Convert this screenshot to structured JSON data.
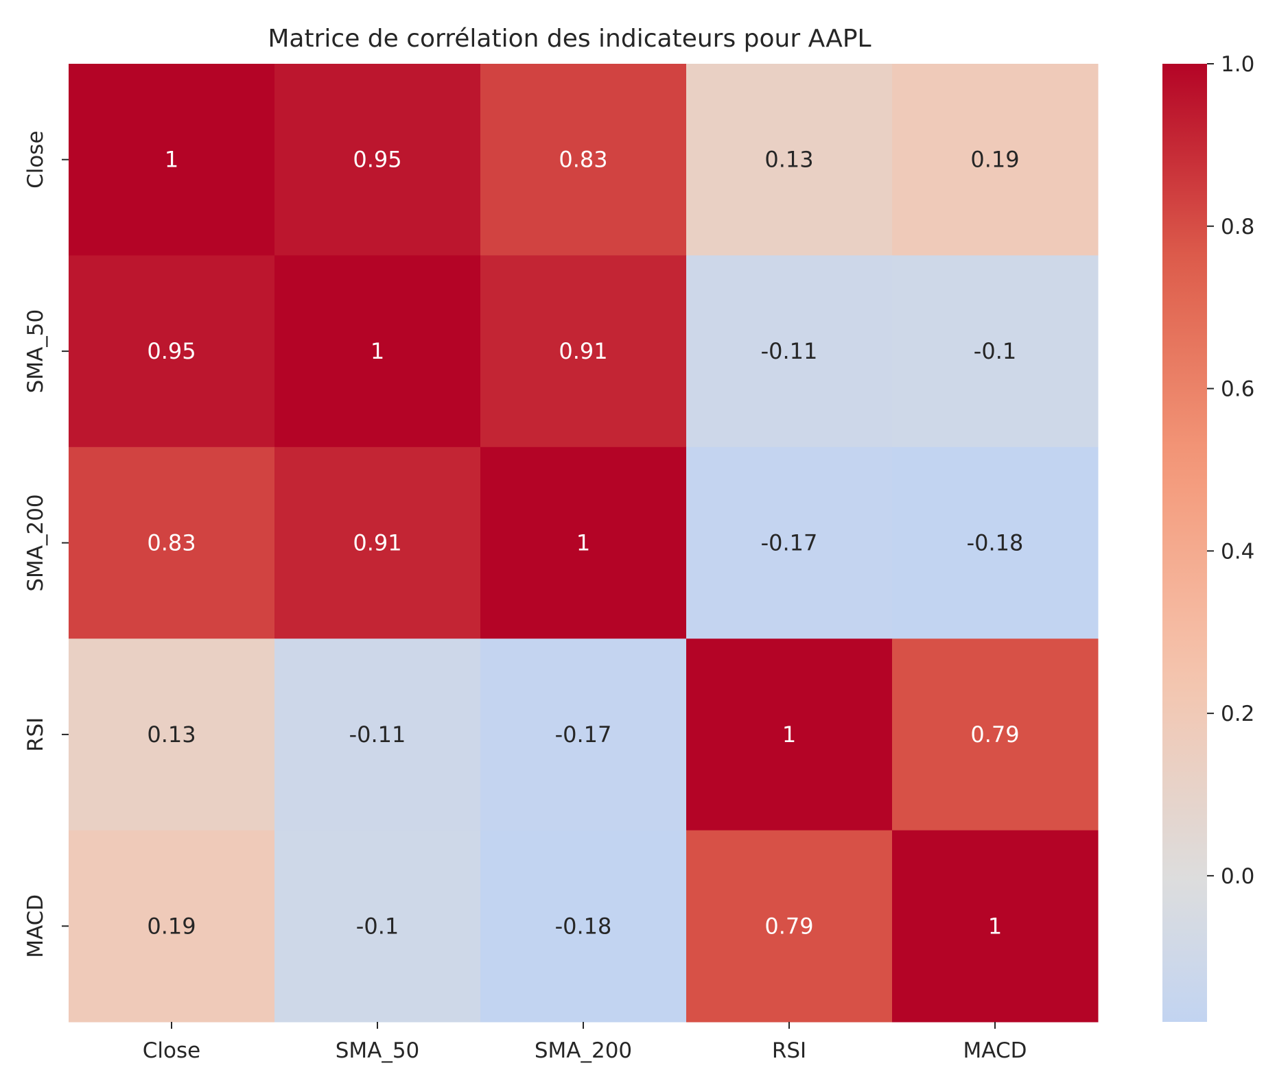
{
  "chart_data": {
    "type": "heatmap",
    "title": "Matrice de corrélation des indicateurs pour AAPL",
    "xlabel": "",
    "ylabel": "",
    "x_categories": [
      "Close",
      "SMA_50",
      "SMA_200",
      "RSI",
      "MACD"
    ],
    "y_categories": [
      "Close",
      "SMA_50",
      "SMA_200",
      "RSI",
      "MACD"
    ],
    "values": [
      [
        1,
        0.95,
        0.83,
        0.13,
        0.19
      ],
      [
        0.95,
        1,
        0.91,
        -0.11,
        -0.1
      ],
      [
        0.83,
        0.91,
        1,
        -0.17,
        -0.18
      ],
      [
        0.13,
        -0.11,
        -0.17,
        1,
        0.79
      ],
      [
        0.19,
        -0.1,
        -0.18,
        0.79,
        1
      ]
    ],
    "colormap": "coolwarm",
    "color_range": [
      -0.18,
      1.0
    ],
    "colorbar_ticks": [
      "0.0",
      "0.2",
      "0.4",
      "0.6",
      "0.8",
      "1.0"
    ],
    "colorbar_tick_values": [
      0.0,
      0.2,
      0.4,
      0.6,
      0.8,
      1.0
    ],
    "annotations": true,
    "grid": false,
    "colorbar_position": "right"
  }
}
